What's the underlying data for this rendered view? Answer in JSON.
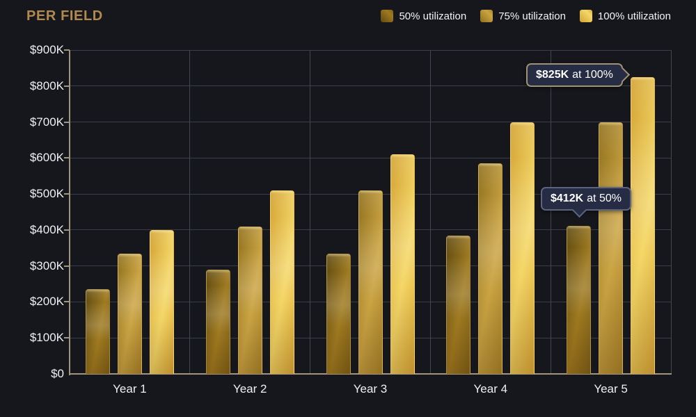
{
  "page": {
    "background": "#15171c"
  },
  "header": {
    "title": "PER FIELD",
    "title_color": "#b28a50"
  },
  "chart_data": {
    "type": "bar",
    "title": "PER FIELD",
    "unit": "USD thousands",
    "categories": [
      "Year 1",
      "Year 2",
      "Year 3",
      "Year 4",
      "Year 5"
    ],
    "series": [
      {
        "name": "50% utilization",
        "values_k": [
          235,
          290,
          335,
          385,
          412
        ]
      },
      {
        "name": "75% utilization",
        "values_k": [
          335,
          410,
          510,
          585,
          700
        ]
      },
      {
        "name": "100% utilization",
        "values_k": [
          400,
          510,
          610,
          700,
          825
        ]
      }
    ],
    "ylim_k": [
      0,
      900
    ],
    "ytick_step_k": 100,
    "ytick_labels": [
      "$0",
      "$100K",
      "$200K",
      "$300K",
      "$400K",
      "$500K",
      "$600K",
      "$700K",
      "$800K",
      "$900K"
    ],
    "grid": true,
    "legend_position": "top-right",
    "series_colors": [
      {
        "edge": "#5f4a10",
        "mid": "#9f7a20",
        "end": "#7d6017"
      },
      {
        "edge": "#8f701c",
        "mid": "#cba443",
        "end": "#a8832a"
      },
      {
        "edge": "#d3a232",
        "mid": "#f4d767",
        "end": "#deab38"
      }
    ]
  },
  "callouts": [
    {
      "value": "$825K",
      "suffix": "at 100%"
    },
    {
      "value": "$412K",
      "suffix": "at 50%"
    }
  ],
  "colors": {
    "axis": "#a3957c",
    "grid_horizontal": "#3a3e47",
    "grid_vertical": "#424650",
    "text": "#f2f3f4",
    "tooltip_bg": "#262c43",
    "tooltip_border_gold": "#a29274",
    "tooltip_border_gray": "#5d6480"
  }
}
